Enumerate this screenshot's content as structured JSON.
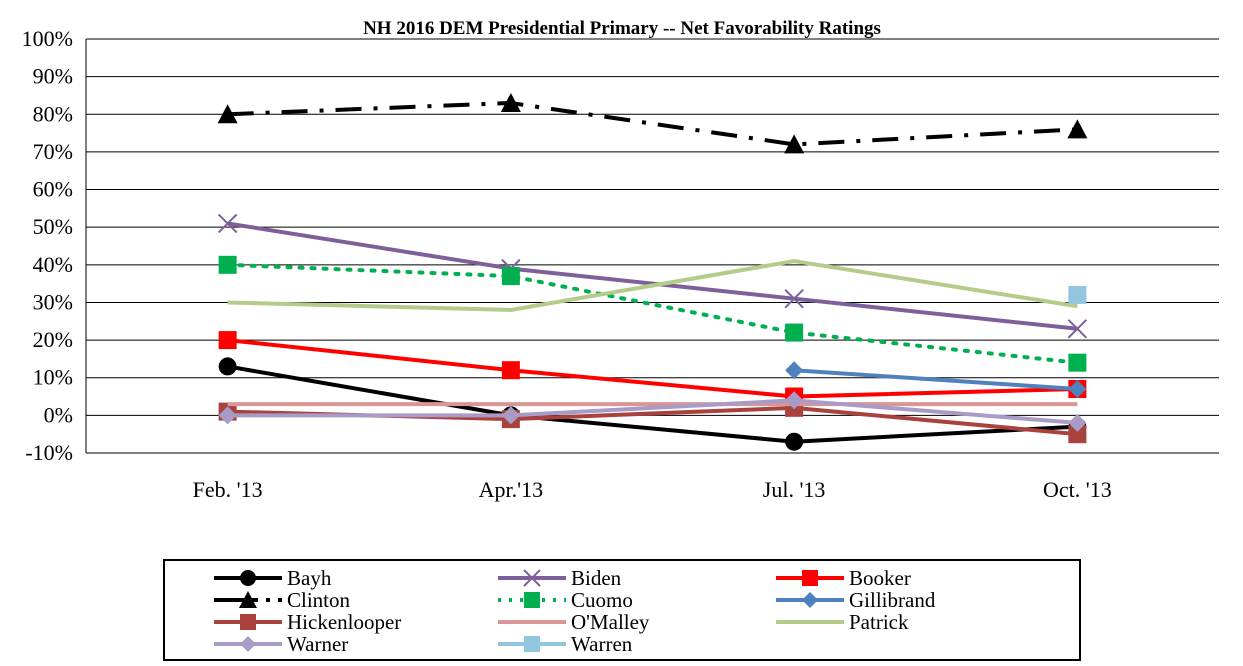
{
  "chart_data": {
    "type": "line",
    "title": "NH 2016 DEM Presidential Primary -- Net Favorability Ratings",
    "xlabel": "",
    "ylabel": "",
    "categories": [
      "Feb. '13",
      "Apr.'13",
      "Jul. '13",
      "Oct. '13"
    ],
    "ylim": [
      -10,
      100
    ],
    "y_ticks": [
      "-10%",
      "0%",
      "10%",
      "20%",
      "30%",
      "40%",
      "50%",
      "60%",
      "70%",
      "80%",
      "90%",
      "100%"
    ],
    "grid": "horizontal",
    "legend_position": "bottom",
    "series": [
      {
        "name": "Bayh",
        "values": [
          13,
          0,
          -7,
          -3
        ],
        "color": "#000000",
        "marker": "circle",
        "dash": "solid"
      },
      {
        "name": "Biden",
        "values": [
          51,
          39,
          31,
          23
        ],
        "color": "#7d5f9a",
        "marker": "x",
        "dash": "solid"
      },
      {
        "name": "Booker",
        "values": [
          20,
          12,
          5,
          7
        ],
        "color": "#ff0000",
        "marker": "square",
        "dash": "solid"
      },
      {
        "name": "Clinton",
        "values": [
          80,
          83,
          72,
          76
        ],
        "color": "#000000",
        "marker": "triangle",
        "dash": "dashdot"
      },
      {
        "name": "Cuomo",
        "values": [
          40,
          37,
          22,
          14
        ],
        "color": "#00b050",
        "marker": "square",
        "dash": "dot"
      },
      {
        "name": "Gillibrand",
        "values": [
          null,
          null,
          12,
          7
        ],
        "color": "#4f81bd",
        "marker": "diamond",
        "dash": "solid"
      },
      {
        "name": "Hickenlooper",
        "values": [
          1,
          -1,
          2,
          -5
        ],
        "color": "#a9423d",
        "marker": "square",
        "dash": "solid"
      },
      {
        "name": "O'Malley",
        "values": [
          3,
          3,
          3,
          3
        ],
        "color": "#d99694",
        "marker": "none",
        "dash": "solid"
      },
      {
        "name": "Patrick",
        "values": [
          30,
          28,
          41,
          29
        ],
        "color": "#b3cc8a",
        "marker": "none",
        "dash": "solid"
      },
      {
        "name": "Warner",
        "values": [
          0,
          0,
          4,
          -2
        ],
        "color": "#a99bc7",
        "marker": "diamond",
        "dash": "solid"
      },
      {
        "name": "Warren",
        "values": [
          null,
          null,
          null,
          32
        ],
        "color": "#92c5de",
        "marker": "square",
        "dash": "solid"
      }
    ]
  }
}
